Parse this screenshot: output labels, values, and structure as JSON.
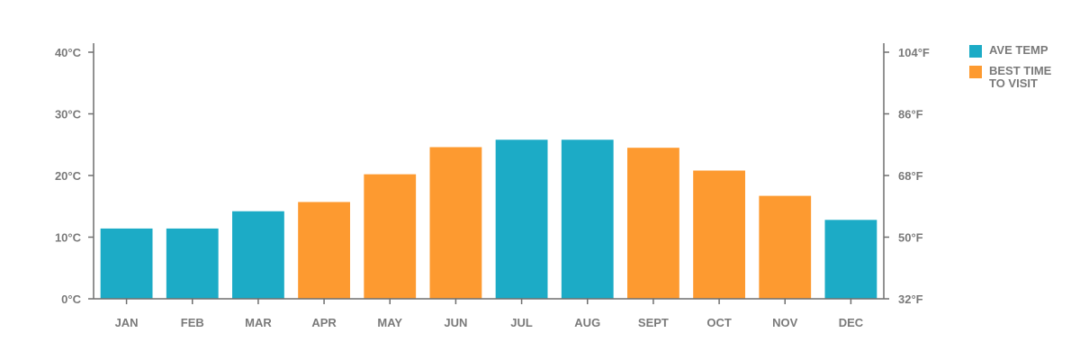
{
  "colors": {
    "ave_temp": "#1cabc6",
    "best_time": "#fd9a30",
    "axis": "#6f6f6f",
    "text": "#7a7a7a"
  },
  "legend": {
    "items": [
      {
        "key": "ave_temp",
        "label": "AVE TEMP"
      },
      {
        "key": "best_time",
        "label": "BEST TIME\nTO VISIT"
      }
    ]
  },
  "chart_data": {
    "type": "bar",
    "categories": [
      "JAN",
      "FEB",
      "MAR",
      "APR",
      "MAY",
      "JUN",
      "JUL",
      "AUG",
      "SEPT",
      "OCT",
      "NOV",
      "DEC"
    ],
    "values": [
      11.4,
      11.4,
      14.2,
      15.7,
      20.2,
      24.6,
      25.8,
      25.8,
      24.5,
      20.8,
      16.7,
      12.8
    ],
    "highlight": [
      false,
      false,
      false,
      true,
      true,
      true,
      false,
      false,
      true,
      true,
      true,
      false
    ],
    "ylim": [
      0,
      40
    ],
    "y_ticks_left": [
      "0°C",
      "10°C",
      "20°C",
      "30°C",
      "40°C"
    ],
    "y_ticks_right": [
      "32°F",
      "50°F",
      "68°F",
      "86°F",
      "104°F"
    ],
    "grid": false,
    "legend_position": "right"
  }
}
